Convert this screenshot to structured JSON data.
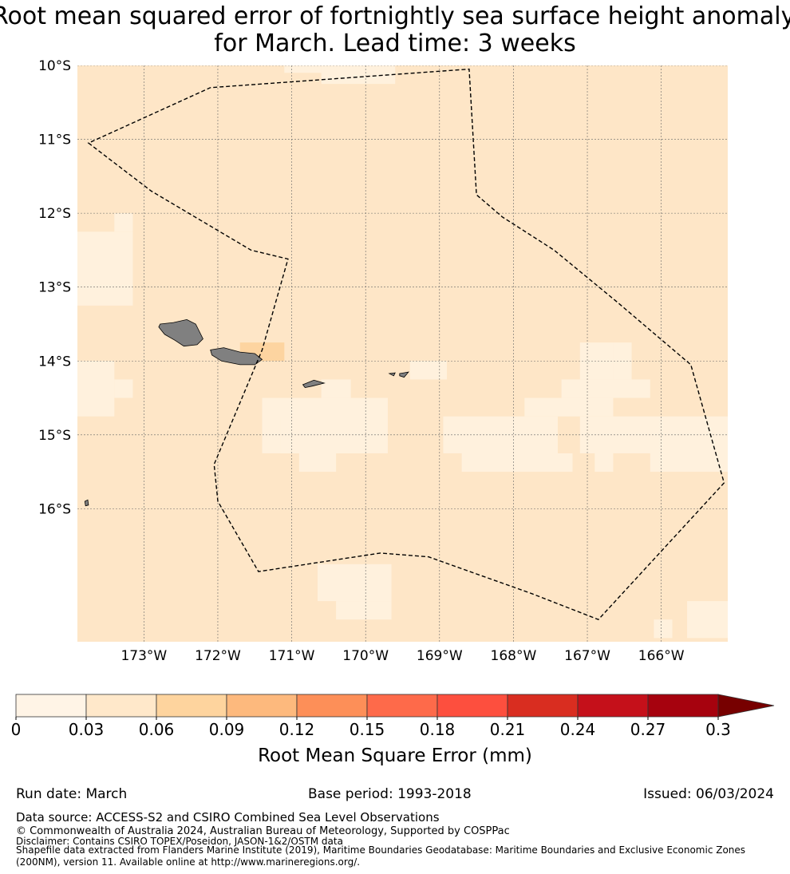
{
  "title": {
    "line1": "Root mean squared error of fortnightly sea surface height anomaly",
    "line2": "for March. Lead time: 3 weeks"
  },
  "map": {
    "lon_range": [
      -173.9,
      -165.1
    ],
    "lat_range": [
      -17.8,
      -10.0
    ],
    "lat_ticks": [
      {
        "value": -10,
        "label": "10°S"
      },
      {
        "value": -11,
        "label": "11°S"
      },
      {
        "value": -12,
        "label": "12°S"
      },
      {
        "value": -13,
        "label": "13°S"
      },
      {
        "value": -14,
        "label": "14°S"
      },
      {
        "value": -15,
        "label": "15°S"
      },
      {
        "value": -16,
        "label": "16°S"
      }
    ],
    "lon_ticks": [
      {
        "value": -173,
        "label": "173°W"
      },
      {
        "value": -172,
        "label": "172°W"
      },
      {
        "value": -171,
        "label": "171°W"
      },
      {
        "value": -170,
        "label": "170°W"
      },
      {
        "value": -169,
        "label": "169°W"
      },
      {
        "value": -168,
        "label": "168°W"
      },
      {
        "value": -167,
        "label": "167°W"
      },
      {
        "value": -166,
        "label": "166°W"
      }
    ],
    "grid": true,
    "background_value": 0.045,
    "colors": {
      "low_cells": "#fff1dd",
      "background": "#fee6c7",
      "high_cells": "#fdd4a0",
      "land": "#808080",
      "boundary": "#000000"
    },
    "low_cells": [
      {
        "lon": [
          -173.9,
          -173.15
        ],
        "lat": [
          -13.25,
          -12.25
        ]
      },
      {
        "lon": [
          -173.4,
          -173.15
        ],
        "lat": [
          -12.25,
          -12.0
        ]
      },
      {
        "lon": [
          -173.9,
          -173.4
        ],
        "lat": [
          -14.75,
          -14.0
        ]
      },
      {
        "lon": [
          -173.4,
          -173.15
        ],
        "lat": [
          -14.5,
          -14.25
        ]
      },
      {
        "lon": [
          -171.4,
          -169.7
        ],
        "lat": [
          -15.25,
          -14.5
        ]
      },
      {
        "lon": [
          -170.6,
          -170.2
        ],
        "lat": [
          -14.5,
          -14.25
        ]
      },
      {
        "lon": [
          -171.15,
          -170.0
        ],
        "lat": [
          -15.25,
          -14.75
        ]
      },
      {
        "lon": [
          -170.9,
          -170.4
        ],
        "lat": [
          -15.5,
          -15.25
        ]
      },
      {
        "lon": [
          -169.4,
          -168.9
        ],
        "lat": [
          -14.25,
          -14.0
        ]
      },
      {
        "lon": [
          -168.95,
          -167.4
        ],
        "lat": [
          -15.25,
          -14.75
        ]
      },
      {
        "lon": [
          -168.7,
          -167.2
        ],
        "lat": [
          -15.5,
          -15.25
        ]
      },
      {
        "lon": [
          -167.85,
          -166.65
        ],
        "lat": [
          -14.75,
          -14.5
        ]
      },
      {
        "lon": [
          -167.1,
          -165.1
        ],
        "lat": [
          -15.25,
          -14.75
        ]
      },
      {
        "lon": [
          -166.15,
          -165.1
        ],
        "lat": [
          -15.5,
          -15.25
        ]
      },
      {
        "lon": [
          -167.35,
          -166.15
        ],
        "lat": [
          -14.5,
          -14.25
        ]
      },
      {
        "lon": [
          -167.1,
          -166.65
        ],
        "lat": [
          -14.25,
          -13.75
        ]
      },
      {
        "lon": [
          -166.65,
          -166.4
        ],
        "lat": [
          -14.25,
          -13.75
        ]
      },
      {
        "lon": [
          -166.9,
          -166.65
        ],
        "lat": [
          -15.5,
          -15.25
        ]
      },
      {
        "lon": [
          -170.65,
          -169.65
        ],
        "lat": [
          -17.25,
          -16.75
        ]
      },
      {
        "lon": [
          -170.4,
          -169.65
        ],
        "lat": [
          -17.5,
          -17.25
        ]
      },
      {
        "lon": [
          -165.65,
          -165.1
        ],
        "lat": [
          -17.75,
          -17.25
        ]
      },
      {
        "lon": [
          -166.1,
          -165.85
        ],
        "lat": [
          -17.75,
          -17.5
        ]
      },
      {
        "lon": [
          -170.6,
          -169.6
        ],
        "lat": [
          -10.25,
          -10.0
        ]
      },
      {
        "lon": [
          -171.1,
          -170.6
        ],
        "lat": [
          -10.1,
          -10.0
        ]
      }
    ],
    "high_cells": [
      {
        "lon": [
          -171.7,
          -171.1
        ],
        "lat": [
          -14.0,
          -13.75
        ]
      }
    ],
    "eez_boundary": [
      [
        -173.75,
        -11.05
      ],
      [
        -172.9,
        -11.7
      ],
      [
        -171.55,
        -12.5
      ],
      [
        -171.05,
        -12.62
      ],
      [
        -171.4,
        -13.85
      ],
      [
        -172.05,
        -15.4
      ],
      [
        -172.0,
        -15.9
      ],
      [
        -171.45,
        -16.85
      ],
      [
        -169.8,
        -16.6
      ],
      [
        -169.15,
        -16.65
      ],
      [
        -167.75,
        -17.15
      ],
      [
        -166.85,
        -17.5
      ],
      [
        -165.15,
        -15.65
      ],
      [
        -165.6,
        -14.05
      ],
      [
        -166.6,
        -13.2
      ],
      [
        -167.45,
        -12.5
      ],
      [
        -168.15,
        -12.05
      ],
      [
        -168.5,
        -11.75
      ],
      [
        -168.6,
        -10.05
      ],
      [
        -172.1,
        -10.3
      ]
    ],
    "land": [
      [
        [
          -172.78,
          -13.5
        ],
        [
          -172.6,
          -13.48
        ],
        [
          -172.42,
          -13.44
        ],
        [
          -172.3,
          -13.5
        ],
        [
          -172.2,
          -13.7
        ],
        [
          -172.28,
          -13.78
        ],
        [
          -172.46,
          -13.8
        ],
        [
          -172.58,
          -13.72
        ],
        [
          -172.72,
          -13.64
        ],
        [
          -172.8,
          -13.54
        ]
      ],
      [
        [
          -172.1,
          -13.85
        ],
        [
          -171.92,
          -13.82
        ],
        [
          -171.7,
          -13.88
        ],
        [
          -171.5,
          -13.9
        ],
        [
          -171.4,
          -13.98
        ],
        [
          -171.5,
          -14.05
        ],
        [
          -171.7,
          -14.05
        ],
        [
          -171.95,
          -14.0
        ],
        [
          -172.08,
          -13.92
        ]
      ],
      [
        [
          -170.85,
          -14.32
        ],
        [
          -170.7,
          -14.26
        ],
        [
          -170.56,
          -14.3
        ],
        [
          -170.72,
          -14.34
        ],
        [
          -170.82,
          -14.36
        ]
      ],
      [
        [
          -169.54,
          -14.17
        ],
        [
          -169.42,
          -14.15
        ],
        [
          -169.48,
          -14.22
        ],
        [
          -169.54,
          -14.2
        ]
      ],
      [
        [
          -169.68,
          -14.17
        ],
        [
          -169.6,
          -14.16
        ],
        [
          -169.62,
          -14.2
        ]
      ],
      [
        [
          -173.8,
          -15.9
        ],
        [
          -173.76,
          -15.88
        ],
        [
          -173.75,
          -15.95
        ],
        [
          -173.79,
          -15.96
        ]
      ]
    ]
  },
  "colorbar": {
    "label": "Root Mean Square Error (mm)",
    "boundaries": [
      0,
      0.03,
      0.06,
      0.09,
      0.12,
      0.15,
      0.18,
      0.21,
      0.24,
      0.27,
      0.3
    ],
    "tick_labels": [
      "0",
      "0.03",
      "0.06",
      "0.09",
      "0.12",
      "0.15",
      "0.18",
      "0.21",
      "0.24",
      "0.27",
      "0.3"
    ],
    "colors": [
      "#fff4e6",
      "#ffe8ca",
      "#fed49e",
      "#fdb97d",
      "#fd8f58",
      "#fe6a4a",
      "#fd4f3e",
      "#d92d20",
      "#c5101a",
      "#a6020e"
    ],
    "extend_color": "#770000"
  },
  "footer": {
    "run_date": "Run date: March",
    "base_period": "Base period: 1993-2018",
    "issued": "Issued: 06/03/2024",
    "data_source": "Data source: ACCESS-S2 and CSIRO Combined Sea Level Observations",
    "copyright": "© Commonwealth of Australia 2024, Australian Bureau of Meteorology, Supported by COSPPac",
    "disclaimer": "Disclaimer: Contains CSIRO TOPEX/Poseidon, JASON-1&2/OSTM data",
    "shapefile": "Shapefile data extracted from Flanders Marine Institute (2019), Maritime Boundaries Geodatabase: Maritime Boundaries and Exclusive Economic Zones (200NM), version 11. Available online at http://www.marineregions.org/."
  }
}
